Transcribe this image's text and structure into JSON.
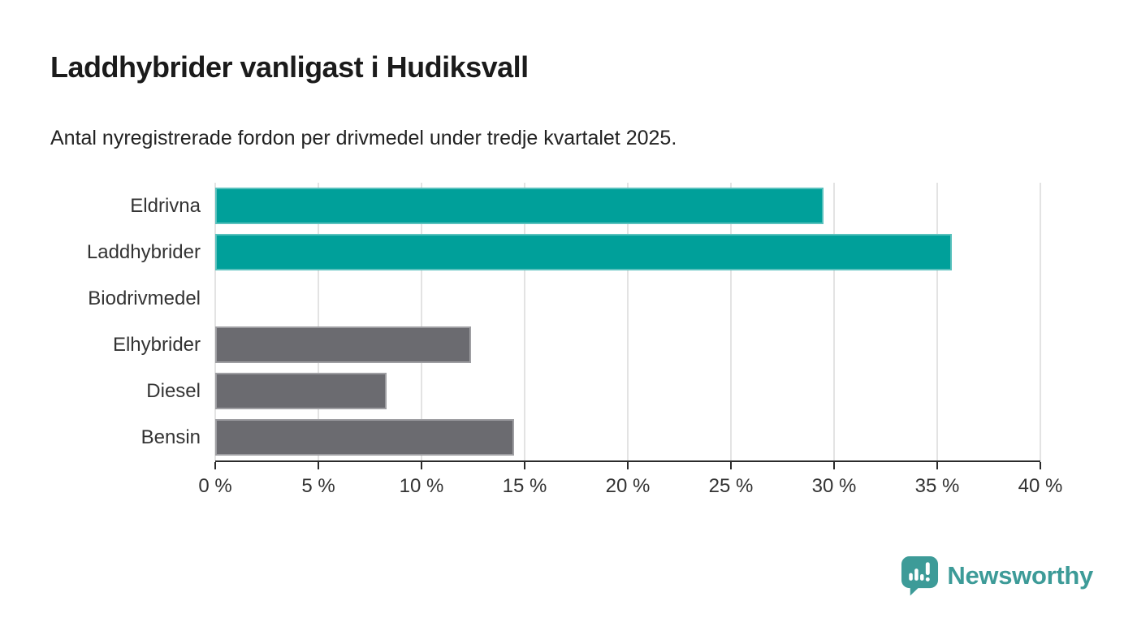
{
  "header": {
    "title": "Laddhybrider vanligast i Hudiksvall",
    "subtitle": "Antal nyregistrerade fordon per drivmedel under tredje kvartalet 2025."
  },
  "colors": {
    "accent_teal": "#00A09A",
    "muted_gray": "#6B6B70",
    "brand_teal": "#3D9B98",
    "gridline": "#E3E3E3",
    "axis": "#2B2B2B",
    "label_text": "#333333",
    "title_text": "#1B1B1B"
  },
  "chart_data": {
    "type": "bar",
    "orientation": "horizontal",
    "title": "Laddhybrider vanligast i Hudiksvall",
    "subtitle": "Antal nyregistrerade fordon per drivmedel under tredje kvartalet 2025.",
    "categories": [
      "Eldrivna",
      "Laddhybrider",
      "Biodrivmedel",
      "Elhybrider",
      "Diesel",
      "Bensin"
    ],
    "values": [
      29.5,
      35.7,
      0,
      12.4,
      8.3,
      14.5
    ],
    "bar_colors": [
      "#00A09A",
      "#00A09A",
      "#6B6B70",
      "#6B6B70",
      "#6B6B70",
      "#6B6B70"
    ],
    "unit": "%",
    "xlim": [
      0,
      40
    ],
    "x_ticks": [
      0,
      5,
      10,
      15,
      20,
      25,
      30,
      35,
      40
    ],
    "x_tick_labels": [
      "0 %",
      "5 %",
      "10 %",
      "15 %",
      "20 %",
      "25 %",
      "30 %",
      "35 %",
      "40 %"
    ],
    "grid": true,
    "legend": false
  },
  "footer": {
    "brand": "Newsworthy",
    "logo_icon": "bar-chart-speech-bubble-icon"
  }
}
